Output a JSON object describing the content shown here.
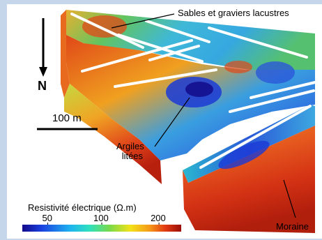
{
  "north": {
    "letter": "N"
  },
  "scale": {
    "label": "100 m"
  },
  "annotations": {
    "sables": "Sables et graviers lacustres",
    "argiles_line1": "Argiles",
    "argiles_line2": "litées",
    "moraine": "Moraine"
  },
  "legend": {
    "title": "Resistivité électrique (Ω.m)",
    "ticks": [
      {
        "value": 50,
        "label": "50"
      },
      {
        "value": 100,
        "label": "100"
      },
      {
        "value": 200,
        "label": "200"
      }
    ],
    "colors": [
      "#120a8a",
      "#1a3fe0",
      "#1fb2f0",
      "#2ee0c0",
      "#7ad94a",
      "#f2e21a",
      "#f59a18",
      "#e23a12",
      "#9a0e08"
    ]
  },
  "colors": {
    "frame": "#c5d6ea",
    "high": "#d8321a",
    "mid": "#58c85a",
    "low": "#1b3ad6"
  }
}
